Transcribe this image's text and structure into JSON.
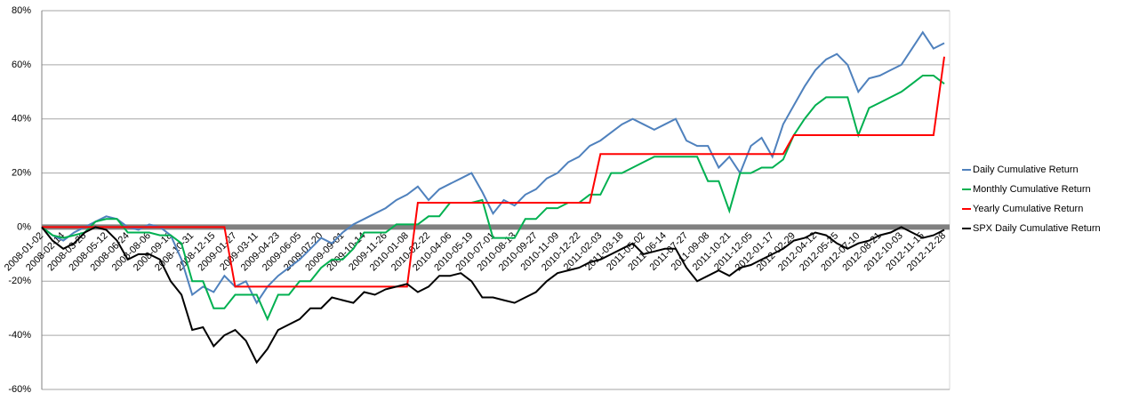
{
  "chart_data": {
    "type": "line",
    "categories": [
      "2008-01-02",
      null,
      "2008-02-14",
      null,
      "2008-03-28",
      null,
      "2008-05-12",
      null,
      "2008-06-24",
      null,
      "2008-08-06",
      null,
      "2008-09-18",
      null,
      "2008-10-31",
      null,
      "2008-12-15",
      null,
      "2009-01-27",
      null,
      "2009-03-11",
      null,
      "2009-04-23",
      null,
      "2009-06-05",
      null,
      "2009-07-20",
      null,
      "2009-09-01",
      null,
      "2009-10-14",
      null,
      "2009-11-26",
      null,
      "2010-01-08",
      null,
      "2010-02-22",
      null,
      "2010-04-06",
      null,
      "2010-05-19",
      null,
      "2010-07-01",
      null,
      "2010-08-13",
      null,
      "2010-09-27",
      null,
      "2010-11-09",
      null,
      "2010-12-22",
      null,
      "2011-02-03",
      null,
      "2011-03-18",
      null,
      "2011-05-02",
      null,
      "2011-06-14",
      null,
      "2011-07-27",
      null,
      "2011-09-08",
      null,
      "2011-10-21",
      null,
      "2011-12-05",
      null,
      "2012-01-17",
      null,
      "2012-02-29",
      null,
      "2012-04-12",
      null,
      "2012-05-25",
      null,
      "2012-07-10",
      null,
      "2012-08-21",
      null,
      "2012-10-03",
      null,
      "2012-11-15",
      null,
      "2012-12-28"
    ],
    "series": [
      {
        "name": "Daily Cumulative Return",
        "color": "#4f81bd",
        "values": [
          0,
          -3,
          -5,
          -2,
          0,
          2,
          4,
          3,
          0,
          -1,
          1,
          0,
          -3,
          -12,
          -25,
          -22,
          -24,
          -18,
          -22,
          -20,
          -28,
          -22,
          -18,
          -15,
          -12,
          -8,
          -4,
          -6,
          -2,
          1,
          3,
          5,
          7,
          10,
          12,
          15,
          10,
          14,
          16,
          18,
          20,
          13,
          5,
          10,
          8,
          12,
          14,
          18,
          20,
          24,
          26,
          30,
          32,
          35,
          38,
          40,
          38,
          36,
          38,
          40,
          32,
          30,
          30,
          22,
          26,
          20,
          30,
          33,
          26,
          38,
          45,
          52,
          58,
          62,
          64,
          60,
          50,
          55,
          56,
          58,
          60,
          66,
          72,
          66,
          68
        ]
      },
      {
        "name": "Monthly Cumulative Return",
        "color": "#00b050",
        "values": [
          0,
          -3,
          -4,
          -3,
          -2,
          2,
          3,
          3,
          -2,
          -2,
          -2,
          -3,
          -3,
          -6,
          -20,
          -20,
          -30,
          -30,
          -25,
          -25,
          -25,
          -34,
          -25,
          -25,
          -20,
          -20,
          -15,
          -12,
          -12,
          -8,
          -2,
          -2,
          -2,
          1,
          1,
          1,
          4,
          4,
          9,
          9,
          9,
          10,
          -4,
          -4,
          -4,
          3,
          3,
          7,
          7,
          9,
          9,
          12,
          12,
          20,
          20,
          22,
          24,
          26,
          26,
          26,
          26,
          26,
          17,
          17,
          6,
          20,
          20,
          22,
          22,
          25,
          34,
          40,
          45,
          48,
          48,
          48,
          34,
          44,
          46,
          48,
          50,
          53,
          56,
          56,
          53
        ]
      },
      {
        "name": "Yearly Cumulative Return",
        "color": "#ff0000",
        "values": [
          0,
          0,
          0,
          0,
          0,
          0,
          0,
          0,
          0,
          0,
          0,
          0,
          0,
          0,
          0,
          0,
          0,
          0,
          -22,
          -22,
          -22,
          -22,
          -22,
          -22,
          -22,
          -22,
          -22,
          -22,
          -22,
          -22,
          -22,
          -22,
          -22,
          -22,
          -22,
          9,
          9,
          9,
          9,
          9,
          9,
          9,
          9,
          9,
          9,
          9,
          9,
          9,
          9,
          9,
          9,
          9,
          27,
          27,
          27,
          27,
          27,
          27,
          27,
          27,
          27,
          27,
          27,
          27,
          27,
          27,
          27,
          27,
          27,
          27,
          34,
          34,
          34,
          34,
          34,
          34,
          34,
          34,
          34,
          34,
          34,
          34,
          34,
          34,
          63
        ]
      },
      {
        "name": "SPX Daily Cumulative Return",
        "color": "#000000",
        "values": [
          0,
          -5,
          -8,
          -6,
          -2,
          0,
          -1,
          -5,
          -12,
          -10,
          -10,
          -12,
          -20,
          -25,
          -38,
          -37,
          -44,
          -40,
          -38,
          -42,
          -50,
          -45,
          -38,
          -36,
          -34,
          -30,
          -30,
          -26,
          -27,
          -28,
          -24,
          -25,
          -23,
          -22,
          -21,
          -24,
          -22,
          -18,
          -18,
          -17,
          -20,
          -26,
          -26,
          -27,
          -28,
          -26,
          -24,
          -20,
          -17,
          -16,
          -15,
          -13,
          -12,
          -10,
          -8,
          -6,
          -10,
          -9,
          -8,
          -8,
          -15,
          -20,
          -18,
          -16,
          -18,
          -15,
          -14,
          -12,
          -10,
          -8,
          -5,
          -4,
          -2,
          -3,
          -6,
          -8,
          -6,
          -5,
          -3,
          -2,
          0,
          -2,
          -4,
          -3,
          -1
        ]
      }
    ],
    "ylim": [
      -60,
      80
    ],
    "yticks": [
      {
        "value": -60,
        "label": "-60%"
      },
      {
        "value": -40,
        "label": "-40%"
      },
      {
        "value": -20,
        "label": "-20%"
      },
      {
        "value": 0,
        "label": "0%"
      },
      {
        "value": 20,
        "label": "20%"
      },
      {
        "value": 40,
        "label": "40%"
      },
      {
        "value": 60,
        "label": "60%"
      },
      {
        "value": 80,
        "label": "80%"
      }
    ],
    "grid": true,
    "legend": "right"
  }
}
